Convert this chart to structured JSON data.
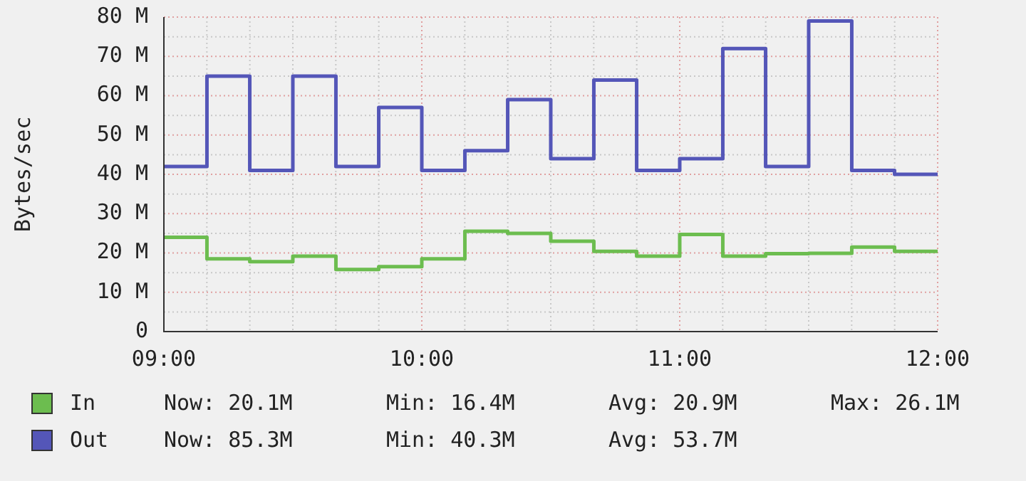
{
  "chart_data": {
    "type": "step",
    "ylabel": "Bytes/sec",
    "x": [
      9,
      9.167,
      9.333,
      9.5,
      9.667,
      9.833,
      10,
      10.167,
      10.333,
      10.5,
      10.667,
      10.833,
      11,
      11.167,
      11.333,
      11.5,
      11.667,
      11.833,
      12
    ],
    "series": [
      {
        "name": "In",
        "color": "#6cbd4f",
        "values": [
          24,
          18.5,
          17.8,
          19.2,
          15.8,
          16.5,
          18.5,
          25.5,
          25,
          23,
          20.4,
          19.2,
          24.7,
          19.2,
          19.8,
          19.9,
          21.5,
          20.4,
          20.4
        ]
      },
      {
        "name": "Out",
        "color": "#5456b8",
        "values": [
          42,
          65,
          41,
          65,
          42,
          57,
          41,
          46,
          59,
          44,
          64,
          41,
          44,
          72,
          42,
          79,
          41,
          40,
          40
        ]
      }
    ],
    "xlim": [
      9,
      12
    ],
    "xticks": [
      {
        "value": 9,
        "label": "09:00"
      },
      {
        "value": 10,
        "label": "10:00"
      },
      {
        "value": 11,
        "label": "11:00"
      },
      {
        "value": 12,
        "label": "12:00"
      }
    ],
    "ylim": [
      0,
      80
    ],
    "yticks": [
      0,
      {
        "value": 10,
        "label": "10 M"
      },
      {
        "value": 20,
        "label": "20 M"
      },
      {
        "value": 30,
        "label": "30 M"
      },
      {
        "value": 40,
        "label": "40 M"
      },
      {
        "value": 50,
        "label": "50 M"
      },
      {
        "value": 60,
        "label": "60 M"
      },
      {
        "value": 70,
        "label": "70 M"
      },
      {
        "value": 80,
        "label": "80 M"
      }
    ],
    "grid": true,
    "legend": "bottom left",
    "marker": "none",
    "line_style": "solid",
    "annotations": [
      "Now: 20.1M",
      "Min: 16.4M",
      "Avg: 20.9M",
      "Max: 26.1M",
      "Now: 85.3M",
      "Min: 40.3M",
      "Avg: 53.7M"
    ]
  }
}
